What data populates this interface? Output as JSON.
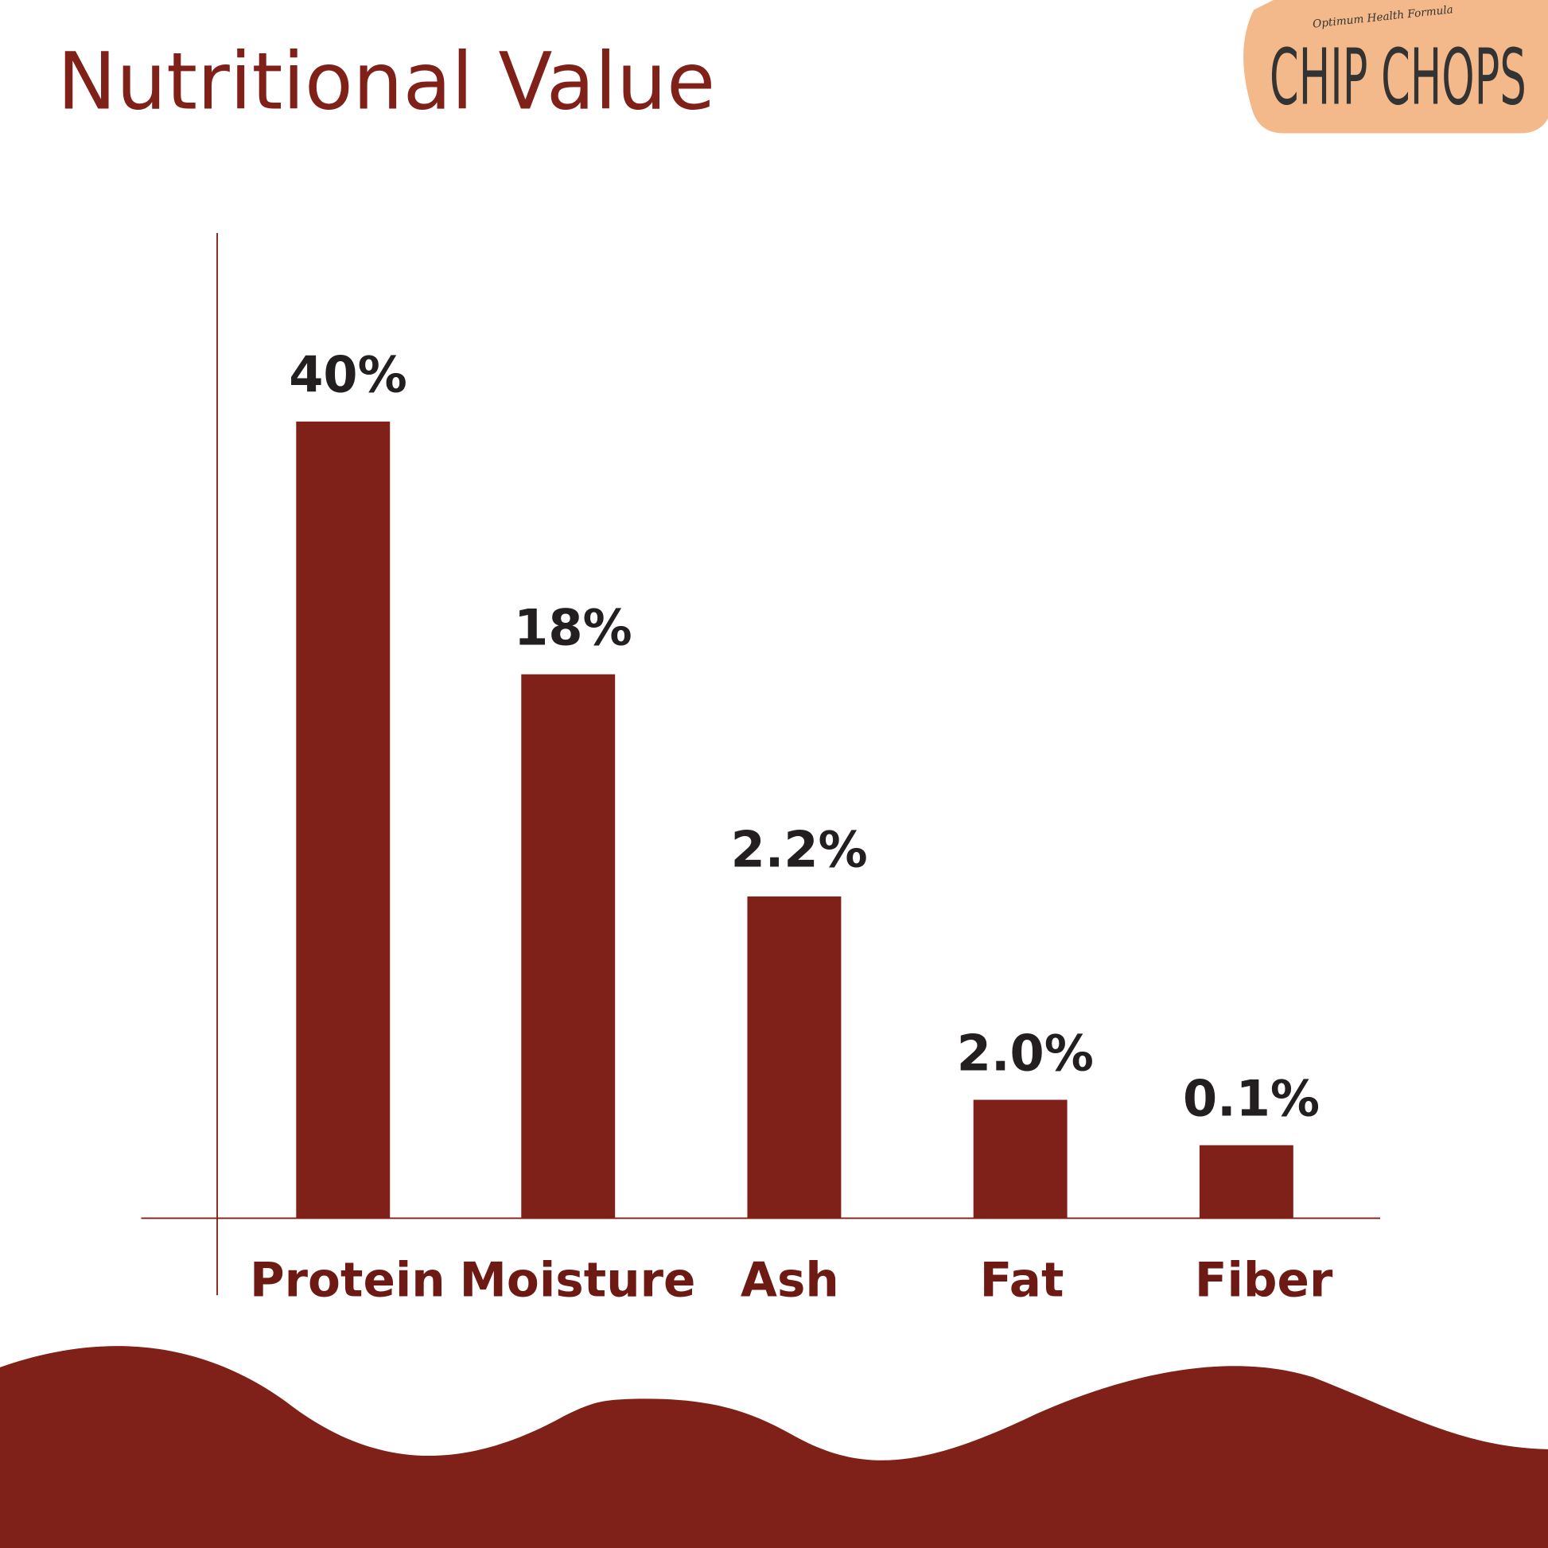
{
  "logo": {
    "brand": "CHIP CHOPS",
    "tagline": "Optimum Health Formula"
  },
  "colors": {
    "bar": "#7f2019",
    "title": "#7f2019",
    "value_label": "#231f20",
    "category_label": "#6e1a14",
    "logo_bg": "#f3b98a"
  },
  "chart_data": {
    "type": "bar",
    "title": "Nutritional Value",
    "categories": [
      "Protein",
      "Moisture",
      "Ash",
      "Fat",
      "Fiber"
    ],
    "values": [
      40,
      18,
      2.2,
      2.0,
      0.1
    ],
    "data_labels": [
      "40%",
      "18%",
      "2.2%",
      "2.0%",
      "0.1%"
    ],
    "xlabel": "",
    "ylabel": "",
    "grid": false
  }
}
